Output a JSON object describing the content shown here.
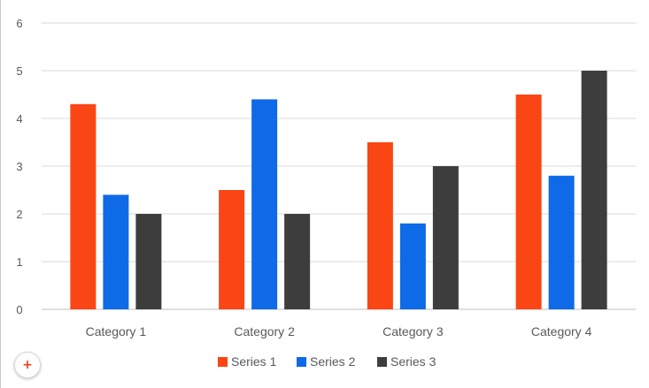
{
  "chart_data": {
    "type": "bar",
    "categories": [
      "Category 1",
      "Category 2",
      "Category 3",
      "Category 4"
    ],
    "series": [
      {
        "name": "Series 1",
        "values": [
          4.3,
          2.5,
          3.5,
          4.5
        ],
        "color": "#fa4515"
      },
      {
        "name": "Series 2",
        "values": [
          2.4,
          4.4,
          1.8,
          2.8
        ],
        "color": "#0f6ae8"
      },
      {
        "name": "Series 3",
        "values": [
          2.0,
          2.0,
          3.0,
          5.0
        ],
        "color": "#3d3d3d"
      }
    ],
    "ylim": [
      0,
      6
    ],
    "yticks": [
      "0",
      "1",
      "2",
      "3",
      "4",
      "5",
      "6"
    ],
    "grid": true,
    "legend_position": "bottom",
    "title": "",
    "xlabel": "",
    "ylabel": ""
  },
  "add_button": {
    "icon": "plus-icon",
    "label": "+"
  }
}
